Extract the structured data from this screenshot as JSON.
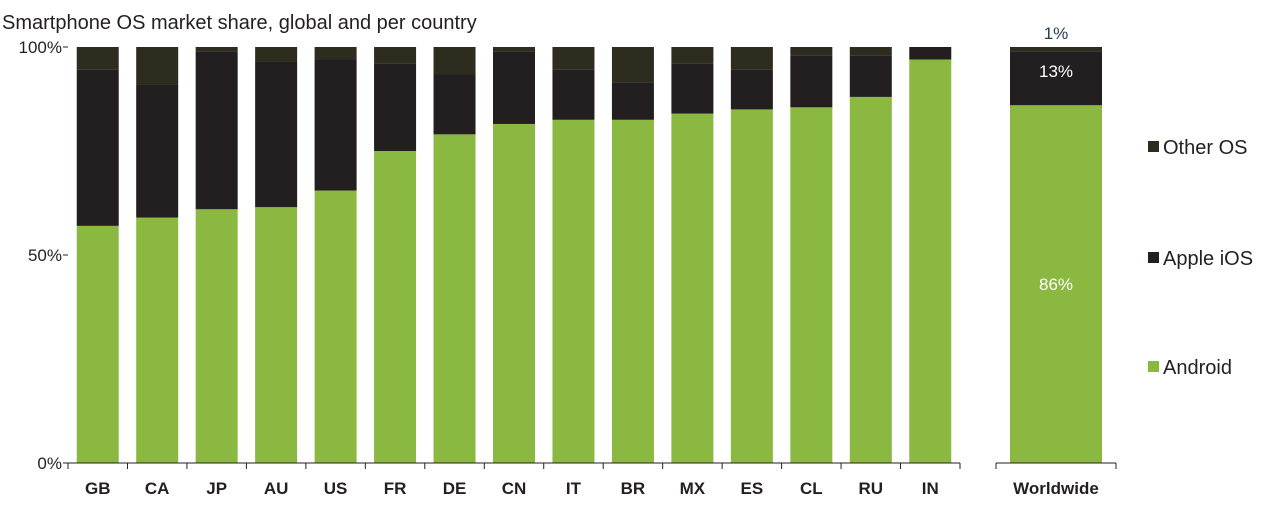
{
  "chart_data": {
    "type": "bar",
    "stacked": true,
    "title": "Smartphone OS market share, global and per country",
    "xlabel": "",
    "ylabel": "",
    "ylim": [
      0,
      100
    ],
    "yticks": [
      "0%",
      "50%",
      "100%"
    ],
    "legend_placement": "right",
    "grid": false,
    "groups": [
      {
        "categories": [
          "GB",
          "CA",
          "JP",
          "AU",
          "US",
          "FR",
          "DE",
          "CN",
          "IT",
          "BR",
          "MX",
          "ES",
          "CL",
          "RU",
          "IN"
        ],
        "series": [
          {
            "name": "Android",
            "color": "#8ab840",
            "values": [
              57,
              59,
              61,
              61.5,
              65.5,
              75,
              79,
              81.5,
              82.5,
              82.5,
              84,
              85,
              85.5,
              88,
              97
            ]
          },
          {
            "name": "Apple iOS",
            "color": "#231f20",
            "values": [
              37.5,
              32,
              38,
              35,
              31.5,
              21,
              14.5,
              17.5,
              12,
              9,
              12,
              9.5,
              12.5,
              10,
              3
            ]
          },
          {
            "name": "Other OS",
            "color": "#2e2b1f",
            "values": [
              5.5,
              9,
              1,
              3.5,
              3,
              4,
              6.5,
              1,
              5.5,
              8.5,
              4,
              5.5,
              2,
              2,
              0
            ]
          }
        ]
      },
      {
        "categories": [
          "Worldwide"
        ],
        "series": [
          {
            "name": "Android",
            "color": "#8ab840",
            "values": [
              86
            ]
          },
          {
            "name": "Apple iOS",
            "color": "#231f20",
            "values": [
              13
            ]
          },
          {
            "name": "Other OS",
            "color": "#2e2b1f",
            "values": [
              1
            ]
          }
        ],
        "data_labels": {
          "Android": "86%",
          "Apple iOS": "13%",
          "Other OS": "1%"
        }
      }
    ],
    "legend": [
      {
        "name": "Other OS",
        "color": "#2e2b1f"
      },
      {
        "name": "Apple iOS",
        "color": "#231f20"
      },
      {
        "name": "Android",
        "color": "#8ab840"
      }
    ]
  }
}
